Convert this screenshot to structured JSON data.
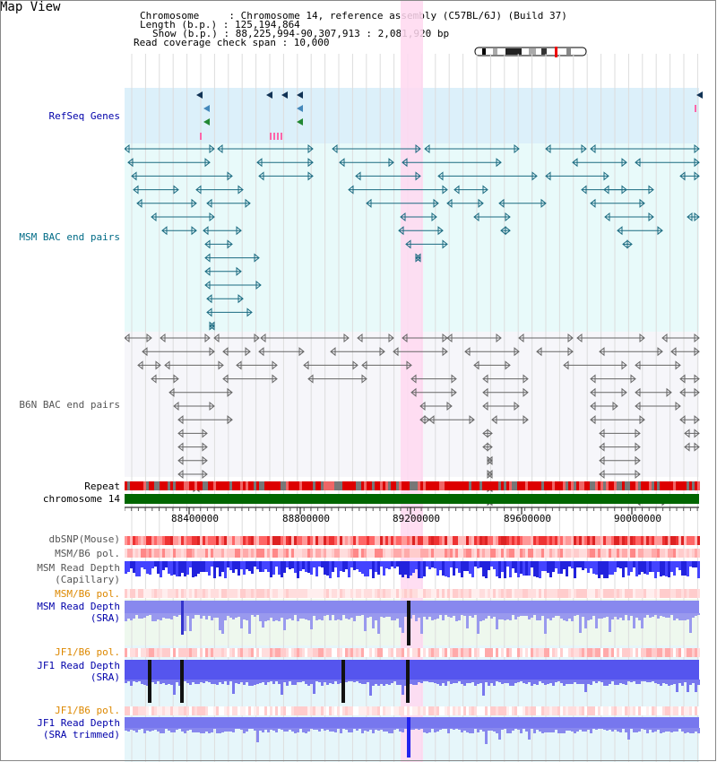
{
  "title": "Map View",
  "info": {
    "line1": "Chromosome     : Chromosome 14, reference assembly (C57BL/6J) (Build 37)",
    "line2": "Length (b.p.) : 125,194,864",
    "line3": "Show (b.p.) : 88,225,994-90,307,913 : 2,081,920 bp",
    "line4": "Read coverage check span : 10,000"
  },
  "tracks": {
    "refseq": "RefSeq Genes",
    "msm_bac": "MSM BAC end pairs",
    "b6n_bac": "B6N BAC end pairs",
    "repeat": "Repeat",
    "chromosome": "chromosome 14",
    "dbsnp": "dbSNP(Mouse)",
    "msm_b6_pol_1": "MSM/B6 pol.",
    "msm_depth_cap_1": "MSM Read Depth",
    "msm_depth_cap_2": "(Capillary)",
    "msm_b6_pol_2": "MSM/B6 pol.",
    "msm_depth_sra_1": "MSM Read Depth",
    "msm_depth_sra_2": "(SRA)",
    "jf1_b6_pol_1": "JF1/B6 pol.",
    "jf1_depth_sra_1": "JF1 Read Depth",
    "jf1_depth_sra_2": "(SRA)",
    "jf1_b6_pol_2": "JF1/B6 pol.",
    "jf1_depth_trim_1": "JF1 Read Depth",
    "jf1_depth_trim_2": "(SRA trimmed)"
  },
  "ruler": {
    "ticks": [
      "88400000",
      "88800000",
      "89200000",
      "89600000",
      "90000000"
    ]
  },
  "colors": {
    "refseq_bg": "#dcf0fa",
    "bac_bg": "#e8fafa",
    "msm_bac_line": "#1a6a80",
    "b6n_bac_line": "#666666",
    "highlight": "#ffd8f0",
    "repeat_red": "#dd0000",
    "chromosome_green": "#006600",
    "depth_blue": "#3333ee"
  }
}
